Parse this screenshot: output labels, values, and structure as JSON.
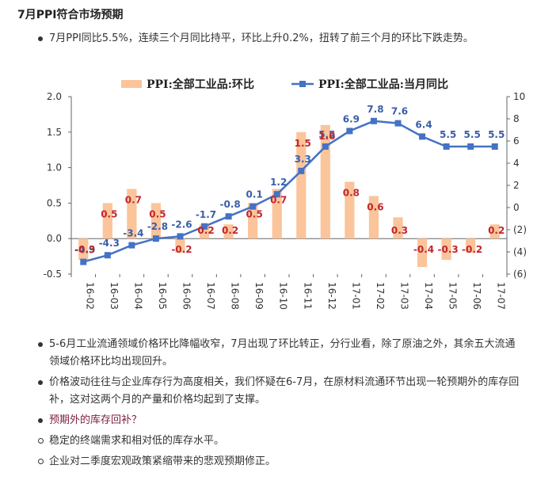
{
  "heading": "7月PPI符合市场预期",
  "intro": "7月PPI同比5.5%，连续三个月同比持平，环比上升0.2%，扭转了前三个月的环比下跌走势。",
  "bullets": [
    {
      "lines": [
        "5-6月工业流通领域价格环比降幅收窄，7月出现了环比转正，分行业看，除了原油之外，其余五大流通",
        "领域价格环比均出现回升。"
      ]
    },
    {
      "lines": [
        "价格波动往往与企业库存行为高度相关，我们怀疑在6-7月，在原材料流通环节出现一轮预期外的库存回",
        "补，这对这两个月的产量和价格均起到了支撑。"
      ]
    }
  ],
  "question": "预期外的库存回补？",
  "sub_bullets": [
    "稳定的终端需求和相对低的库存水平。",
    "企业对二季度宏观政策紧缩带来的悲观预期修正。"
  ],
  "chart_data": {
    "type": "bar+line",
    "categories": [
      "16-02",
      "16-03",
      "16-04",
      "16-05",
      "16-06",
      "16-07",
      "16-08",
      "16-09",
      "16-10",
      "16-11",
      "16-12",
      "17-01",
      "17-02",
      "17-03",
      "17-04",
      "17-05",
      "17-06",
      "17-07"
    ],
    "bar_series": {
      "name": "PPI:全部工业品:环比",
      "axis": "left",
      "color": "#fbc49a",
      "label_color": "#c0272d",
      "values": [
        -0.3,
        0.5,
        0.7,
        0.5,
        -0.2,
        0.2,
        0.2,
        0.5,
        0.7,
        1.5,
        1.6,
        0.8,
        0.6,
        0.3,
        -0.4,
        -0.3,
        -0.2,
        0.2
      ],
      "labels": [
        "-0.3",
        "0.5",
        "0.7",
        "0.5",
        "-0.2",
        "0.2",
        "0.2",
        "0.5",
        "0.7",
        "1.5",
        "1.6",
        "0.8",
        "0.6",
        "0.3",
        "-0.4",
        "-0.3",
        "-0.2",
        "0.2"
      ]
    },
    "line_series": {
      "name": "PPI:全部工业品:当月同比",
      "axis": "right",
      "color": "#4472c4",
      "label_color": "#3a5ea8",
      "values": [
        -4.9,
        -4.3,
        -3.4,
        -2.8,
        -2.6,
        -1.7,
        -0.8,
        0.1,
        1.2,
        3.3,
        5.5,
        6.9,
        7.8,
        7.6,
        6.4,
        5.5,
        5.5,
        5.5
      ],
      "labels": [
        "-4.9",
        "-4.3",
        "-3.4",
        "-2.8",
        "-2.6",
        "-1.7",
        "-0.8",
        "0.1",
        "1.2",
        "3.3",
        "5.5",
        "6.9",
        "7.8",
        "7.6",
        "6.4",
        "5.5",
        "5.5",
        "5.5"
      ]
    },
    "left_axis": {
      "ylim": [
        -0.5,
        2.0
      ],
      "ticks": [
        "-0.5",
        "0.0",
        "0.5",
        "1.0",
        "1.5",
        "2.0"
      ]
    },
    "right_axis": {
      "ylim": [
        -6,
        10
      ],
      "ticks": [
        "(6)",
        "(4)",
        "(2)",
        "0",
        "2",
        "4",
        "6",
        "8",
        "10"
      ]
    },
    "legend_position": "top",
    "grid": false
  }
}
